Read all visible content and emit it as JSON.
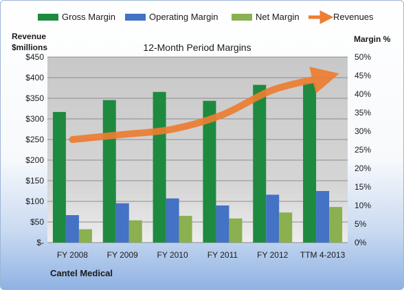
{
  "chart_data": {
    "type": "bar",
    "title": "12-Month Period Margins",
    "categories": [
      "FY 2008",
      "FY 2009",
      "FY 2010",
      "FY 2011",
      "FY 2012",
      "TTM 4-2013"
    ],
    "series": [
      {
        "name": "Gross Margin",
        "axis": "right",
        "color": "#1e8a3f",
        "values": [
          35.2,
          38.4,
          40.6,
          38.2,
          42.5,
          43.0
        ]
      },
      {
        "name": "Operating Margin",
        "axis": "right",
        "color": "#4472c4",
        "values": [
          7.4,
          10.6,
          11.9,
          10.0,
          12.9,
          13.9
        ]
      },
      {
        "name": "Net Margin",
        "axis": "right",
        "color": "#8ab04f",
        "values": [
          3.6,
          6.0,
          7.2,
          6.5,
          8.1,
          9.6
        ]
      }
    ],
    "line_series": {
      "name": "Revenues",
      "axis": "left",
      "color": "#ed7d31",
      "values": [
        250,
        262,
        275,
        310,
        370,
        400
      ]
    },
    "y_left": {
      "label_line1": "Revenue",
      "label_line2": "$millions",
      "ylim": [
        0,
        450
      ],
      "ticks": [
        "$-",
        "$50",
        "$100",
        "$150",
        "$200",
        "$250",
        "$300",
        "$350",
        "$400",
        "$450"
      ]
    },
    "y_right": {
      "label": "Margin %",
      "ylim": [
        0,
        50
      ],
      "ticks": [
        "0%",
        "5%",
        "10%",
        "15%",
        "20%",
        "25%",
        "30%",
        "35%",
        "40%",
        "45%",
        "50%"
      ]
    },
    "legend_position": "top",
    "grid": true
  },
  "footer": {
    "company": "Cantel Medical"
  }
}
